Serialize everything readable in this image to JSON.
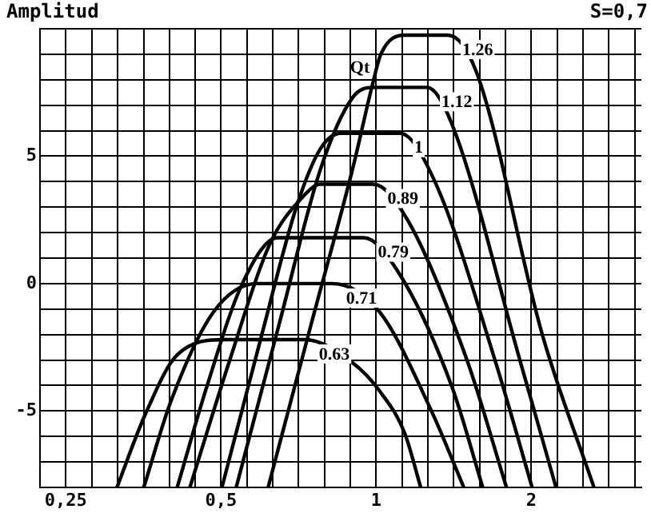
{
  "chart_data": {
    "type": "line",
    "title": "Amplitud",
    "subtitle": "S=0,7",
    "legend_title": "Qt",
    "log": "x",
    "grid": true,
    "marker": "none",
    "line_style": "solid",
    "legend": false,
    "xlim": [
      0.2227,
      3.27
    ],
    "ylim": [
      -8,
      10
    ],
    "xticks": [
      {
        "value": 0.25,
        "label": "0,25"
      },
      {
        "value": 0.281,
        "label": null
      },
      {
        "value": 0.315,
        "label": null
      },
      {
        "value": 0.354,
        "label": null
      },
      {
        "value": 0.397,
        "label": null
      },
      {
        "value": 0.445,
        "label": null
      },
      {
        "value": 0.5,
        "label": "0,5"
      },
      {
        "value": 0.561,
        "label": null
      },
      {
        "value": 0.63,
        "label": null
      },
      {
        "value": 0.707,
        "label": null
      },
      {
        "value": 0.794,
        "label": null
      },
      {
        "value": 0.891,
        "label": null
      },
      1,
      {
        "value": 1.122,
        "label": null
      },
      {
        "value": 1.26,
        "label": null
      },
      {
        "value": 1.414,
        "label": null
      },
      {
        "value": 1.587,
        "label": null
      },
      {
        "value": 1.782,
        "label": null
      },
      2,
      {
        "value": 2.245,
        "label": null
      },
      {
        "value": 2.52,
        "label": null
      },
      {
        "value": 2.828,
        "label": null
      },
      {
        "value": 3.175,
        "label": null
      }
    ],
    "yticks": [
      {
        "value": -8,
        "label": null
      },
      {
        "value": -7,
        "label": null
      },
      {
        "value": -6,
        "label": null
      },
      -5,
      {
        "value": -4,
        "label": null
      },
      {
        "value": -3,
        "label": null
      },
      {
        "value": -2,
        "label": null
      },
      {
        "value": -1,
        "label": null
      },
      0,
      {
        "value": 1,
        "label": null
      },
      {
        "value": 2,
        "label": null
      },
      {
        "value": 3,
        "label": null
      },
      {
        "value": 4,
        "label": null
      },
      5,
      {
        "value": 6,
        "label": null
      },
      {
        "value": 7,
        "label": null
      },
      {
        "value": 8,
        "label": null
      },
      {
        "value": 9,
        "label": null
      },
      {
        "value": 10,
        "label": null
      }
    ],
    "series": [
      {
        "name": "0.63",
        "color": "#000000",
        "x": [
          0.314,
          0.357,
          0.411,
          0.509,
          0.726,
          0.899,
          1.014,
          1.137,
          1.22
        ],
        "values": [
          -8,
          -5.1,
          -2.8,
          -2.2,
          -2.2,
          -3.1,
          -4.2,
          -5.9,
          -8
        ]
      },
      {
        "name": "0.71",
        "color": "#000000",
        "x": [
          0.354,
          0.4,
          0.484,
          0.587,
          0.82,
          1.014,
          1.28,
          1.479
        ],
        "values": [
          -8,
          -4.6,
          -1.1,
          0,
          0,
          -1.1,
          -5,
          -8
        ]
      },
      {
        "name": "0.79",
        "color": "#000000",
        "x": [
          0.411,
          0.47,
          0.55,
          0.644,
          0.945,
          1.1,
          1.4,
          1.61
        ],
        "values": [
          -8,
          -4,
          0,
          1.8,
          1.8,
          0.5,
          -4,
          -8
        ]
      },
      {
        "name": "0.89",
        "color": "#000000",
        "x": [
          0.435,
          0.52,
          0.62,
          0.72,
          0.78,
          0.986,
          1.15,
          1.5,
          1.79
        ],
        "values": [
          -8,
          -3,
          1.5,
          3.4,
          3.9,
          3.9,
          2.5,
          -3,
          -8
        ]
      },
      {
        "name": "1",
        "color": "#000000",
        "x": [
          0.502,
          0.6,
          0.7,
          0.78,
          0.855,
          1.112,
          1.3,
          1.7,
          2.007
        ],
        "values": [
          -8,
          -2,
          3,
          5.3,
          5.9,
          5.9,
          4,
          -3,
          -8
        ]
      },
      {
        "name": "1.12",
        "color": "#000000",
        "x": [
          0.535,
          0.65,
          0.78,
          0.9,
          0.986,
          1.255,
          1.4,
          1.9,
          2.233
        ],
        "values": [
          -8,
          -1.5,
          4.5,
          7.3,
          7.7,
          7.7,
          6.3,
          -3,
          -8
        ]
      },
      {
        "name": "1.26",
        "color": "#000000",
        "x": [
          0.617,
          0.75,
          0.9,
          0.986,
          1.021,
          1.137,
          1.377,
          1.565,
          2.1,
          2.646
        ],
        "values": [
          -8,
          -1.5,
          4.5,
          7.9,
          9,
          9.75,
          9.75,
          8.3,
          -2,
          -8
        ]
      }
    ]
  }
}
